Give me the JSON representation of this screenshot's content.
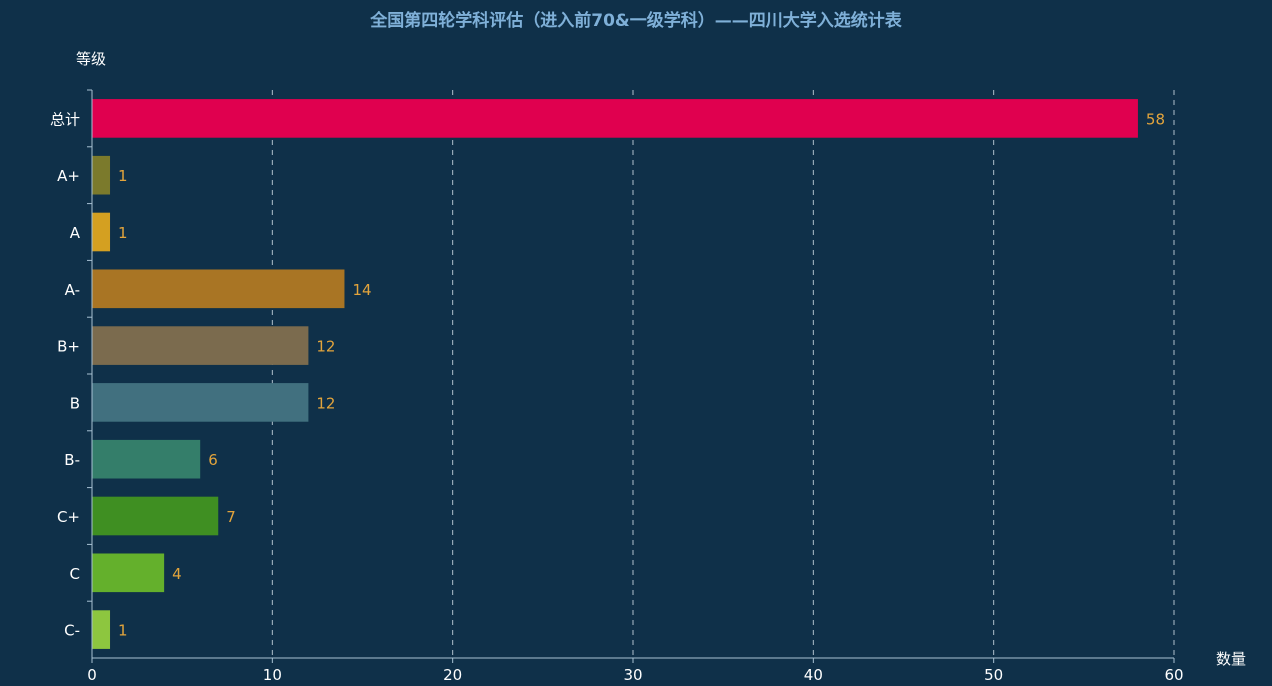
{
  "chart_data": {
    "type": "bar",
    "orientation": "horizontal",
    "title": "全国第四轮学科评估（进入前70&一级学科）——四川大学入选统计表",
    "ylabel": "等级",
    "xlabel": "数量",
    "categories": [
      "总计",
      "A+",
      "A",
      "A-",
      "B+",
      "B",
      "B-",
      "C+",
      "C",
      "C-"
    ],
    "values": [
      58,
      1,
      1,
      14,
      12,
      12,
      6,
      7,
      4,
      1
    ],
    "value_labels": [
      "58",
      "1",
      "1",
      "14",
      "12",
      "12",
      "6",
      "7",
      "4",
      "1"
    ],
    "bar_colors": [
      "#e0004f",
      "#7b7a2c",
      "#d4a021",
      "#a97524",
      "#7b6b4e",
      "#41707f",
      "#347e6a",
      "#3f8f22",
      "#64b02c",
      "#8dc63f"
    ],
    "xlim": [
      0,
      60
    ],
    "xticks": [
      0,
      10,
      20,
      30,
      40,
      50,
      60
    ],
    "xtick_labels": [
      "0",
      "10",
      "20",
      "30",
      "40",
      "50",
      "60"
    ],
    "grid": "vertical dashed",
    "colors": {
      "background": "#0f3049",
      "title": "#7fb0d8",
      "axis_label": "#ffffff",
      "tick_label": "#ffffff",
      "axis_line": "#a8c2d4",
      "grid": "#d7e4ee",
      "value_label": "#e2a43c"
    }
  }
}
